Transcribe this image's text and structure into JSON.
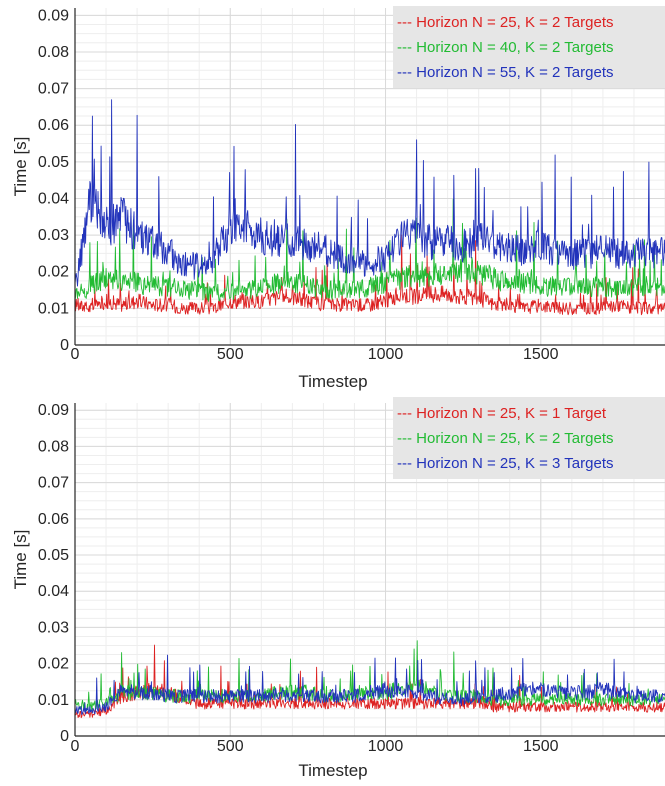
{
  "chart_data": [
    {
      "type": "line",
      "title": "",
      "xlabel": "Timestep",
      "ylabel": "Time [s]",
      "xlim": [
        0,
        1900
      ],
      "ylim": [
        0,
        0.092
      ],
      "grid": true,
      "legend_placement": "top-right",
      "x_ticks": [
        "0",
        "500",
        "1000",
        "1500"
      ],
      "x_tick_values": [
        0,
        500,
        1000,
        1500
      ],
      "y_ticks": [
        "0",
        "0.01",
        "0.02",
        "0.03",
        "0.04",
        "0.05",
        "0.06",
        "0.07",
        "0.08",
        "0.09"
      ],
      "y_tick_values": [
        0,
        0.01,
        0.02,
        0.03,
        0.04,
        0.05,
        0.06,
        0.07,
        0.08,
        0.09
      ],
      "series": [
        {
          "name": "--- Horizon N = 25, K = 2 Targets",
          "color": "#dd2222",
          "x": [
            0,
            50,
            100,
            150,
            200,
            250,
            300,
            350,
            400,
            450,
            500,
            550,
            600,
            650,
            700,
            750,
            800,
            850,
            900,
            950,
            1000,
            1050,
            1100,
            1150,
            1200,
            1250,
            1300,
            1350,
            1400,
            1450,
            1500,
            1550,
            1600,
            1650,
            1700,
            1750,
            1800,
            1850,
            1900
          ],
          "y": [
            0.011,
            0.01,
            0.012,
            0.011,
            0.012,
            0.011,
            0.011,
            0.01,
            0.01,
            0.01,
            0.012,
            0.012,
            0.012,
            0.013,
            0.013,
            0.012,
            0.011,
            0.011,
            0.011,
            0.011,
            0.012,
            0.014,
            0.013,
            0.014,
            0.014,
            0.013,
            0.013,
            0.011,
            0.011,
            0.01,
            0.011,
            0.01,
            0.01,
            0.01,
            0.01,
            0.011,
            0.01,
            0.01,
            0.01
          ]
        },
        {
          "name": "--- Horizon N = 40, K = 2 Targets",
          "color": "#22bb33",
          "x": [
            0,
            50,
            100,
            150,
            200,
            250,
            300,
            350,
            400,
            450,
            500,
            550,
            600,
            650,
            700,
            750,
            800,
            850,
            900,
            950,
            1000,
            1050,
            1100,
            1150,
            1200,
            1250,
            1300,
            1350,
            1400,
            1450,
            1500,
            1550,
            1600,
            1650,
            1700,
            1750,
            1800,
            1850,
            1900
          ],
          "y": [
            0.013,
            0.016,
            0.018,
            0.017,
            0.017,
            0.016,
            0.016,
            0.015,
            0.015,
            0.014,
            0.015,
            0.015,
            0.016,
            0.017,
            0.017,
            0.016,
            0.015,
            0.015,
            0.015,
            0.016,
            0.017,
            0.018,
            0.019,
            0.019,
            0.02,
            0.021,
            0.02,
            0.018,
            0.017,
            0.017,
            0.016,
            0.016,
            0.016,
            0.016,
            0.016,
            0.015,
            0.016,
            0.016,
            0.016
          ]
        },
        {
          "name": "--- Horizon N = 55, K = 2 Targets",
          "color": "#2233bb",
          "x": [
            0,
            50,
            100,
            150,
            200,
            250,
            300,
            350,
            400,
            450,
            500,
            550,
            600,
            650,
            700,
            750,
            800,
            850,
            900,
            950,
            1000,
            1050,
            1100,
            1150,
            1200,
            1250,
            1300,
            1350,
            1400,
            1450,
            1500,
            1550,
            1600,
            1650,
            1700,
            1750,
            1800,
            1850,
            1900
          ],
          "y": [
            0.015,
            0.04,
            0.032,
            0.035,
            0.03,
            0.028,
            0.026,
            0.021,
            0.022,
            0.024,
            0.032,
            0.032,
            0.03,
            0.029,
            0.028,
            0.027,
            0.026,
            0.024,
            0.023,
            0.022,
            0.024,
            0.03,
            0.029,
            0.028,
            0.028,
            0.027,
            0.03,
            0.028,
            0.027,
            0.026,
            0.027,
            0.026,
            0.025,
            0.025,
            0.026,
            0.025,
            0.025,
            0.025,
            0.025
          ]
        }
      ]
    },
    {
      "type": "line",
      "title": "",
      "xlabel": "Timestep",
      "ylabel": "Time [s]",
      "xlim": [
        0,
        1900
      ],
      "ylim": [
        0,
        0.092
      ],
      "grid": true,
      "legend_placement": "top-right",
      "x_ticks": [
        "0",
        "500",
        "1000",
        "1500"
      ],
      "x_tick_values": [
        0,
        500,
        1000,
        1500
      ],
      "y_ticks": [
        "0",
        "0.01",
        "0.02",
        "0.03",
        "0.04",
        "0.05",
        "0.06",
        "0.07",
        "0.08",
        "0.09"
      ],
      "y_tick_values": [
        0,
        0.01,
        0.02,
        0.03,
        0.04,
        0.05,
        0.06,
        0.07,
        0.08,
        0.09
      ],
      "series": [
        {
          "name": "--- Horizon N = 25, K = 1 Target",
          "color": "#dd2222",
          "x": [
            0,
            50,
            100,
            150,
            200,
            250,
            300,
            350,
            400,
            450,
            500,
            550,
            600,
            650,
            700,
            750,
            800,
            850,
            900,
            950,
            1000,
            1050,
            1100,
            1150,
            1200,
            1250,
            1300,
            1350,
            1400,
            1450,
            1500,
            1550,
            1600,
            1650,
            1700,
            1750,
            1800,
            1850,
            1900
          ],
          "y": [
            0.006,
            0.006,
            0.007,
            0.011,
            0.012,
            0.013,
            0.012,
            0.01,
            0.009,
            0.009,
            0.009,
            0.009,
            0.009,
            0.009,
            0.009,
            0.009,
            0.009,
            0.009,
            0.009,
            0.009,
            0.009,
            0.009,
            0.009,
            0.009,
            0.009,
            0.009,
            0.009,
            0.008,
            0.008,
            0.008,
            0.008,
            0.008,
            0.008,
            0.008,
            0.008,
            0.008,
            0.008,
            0.008,
            0.008
          ]
        },
        {
          "name": "--- Horizon N = 25, K = 2 Targets",
          "color": "#22bb33",
          "x": [
            0,
            50,
            100,
            150,
            200,
            250,
            300,
            350,
            400,
            450,
            500,
            550,
            600,
            650,
            700,
            750,
            800,
            850,
            900,
            950,
            1000,
            1050,
            1100,
            1150,
            1200,
            1250,
            1300,
            1350,
            1400,
            1450,
            1500,
            1550,
            1600,
            1650,
            1700,
            1750,
            1800,
            1850,
            1900
          ],
          "y": [
            0.009,
            0.008,
            0.009,
            0.012,
            0.012,
            0.012,
            0.011,
            0.011,
            0.011,
            0.011,
            0.011,
            0.011,
            0.011,
            0.012,
            0.012,
            0.012,
            0.011,
            0.011,
            0.012,
            0.012,
            0.012,
            0.013,
            0.014,
            0.012,
            0.011,
            0.011,
            0.011,
            0.01,
            0.01,
            0.01,
            0.01,
            0.01,
            0.01,
            0.01,
            0.01,
            0.01,
            0.01,
            0.01,
            0.01
          ]
        },
        {
          "name": "--- Horizon N = 25, K = 3 Targets",
          "color": "#2233bb",
          "x": [
            0,
            50,
            100,
            150,
            200,
            250,
            300,
            350,
            400,
            450,
            500,
            550,
            600,
            650,
            700,
            750,
            800,
            850,
            900,
            950,
            1000,
            1050,
            1100,
            1150,
            1200,
            1250,
            1300,
            1350,
            1400,
            1450,
            1500,
            1550,
            1600,
            1650,
            1700,
            1750,
            1800,
            1850,
            1900
          ],
          "y": [
            0.007,
            0.007,
            0.008,
            0.013,
            0.012,
            0.012,
            0.011,
            0.011,
            0.011,
            0.011,
            0.011,
            0.011,
            0.011,
            0.011,
            0.011,
            0.011,
            0.011,
            0.011,
            0.011,
            0.012,
            0.013,
            0.012,
            0.012,
            0.011,
            0.01,
            0.01,
            0.011,
            0.011,
            0.012,
            0.013,
            0.013,
            0.012,
            0.012,
            0.012,
            0.013,
            0.012,
            0.011,
            0.011,
            0.011
          ]
        }
      ]
    }
  ]
}
